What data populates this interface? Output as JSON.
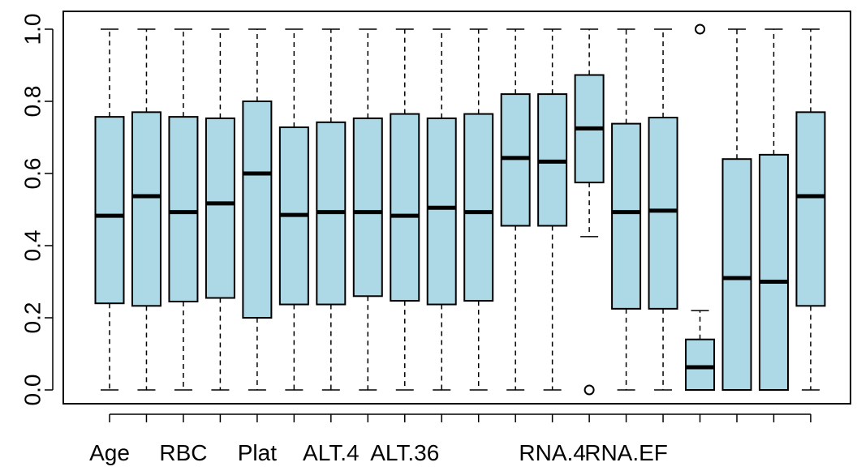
{
  "chart_data": {
    "type": "boxplot",
    "title": "",
    "xlabel": "",
    "ylabel": "",
    "ylim": [
      0,
      1.0
    ],
    "yticks": [
      "0.0",
      "0.2",
      "0.4",
      "0.6",
      "0.8",
      "1.0"
    ],
    "x_tick_labels": [
      "Age",
      "",
      "RBC",
      "",
      "Plat",
      "",
      "ALT.4",
      "",
      "ALT.36",
      "",
      "",
      "",
      "RNA.4",
      "",
      "RNA.EF",
      "",
      "",
      "",
      "",
      ""
    ],
    "box_fill": "#add8e6",
    "line_color": "#000000",
    "grid": false,
    "boxes": [
      {
        "min": 0.0,
        "q1": 0.24,
        "median": 0.483,
        "q3": 0.757,
        "max": 1.0,
        "outliers": []
      },
      {
        "min": 0.0,
        "q1": 0.233,
        "median": 0.537,
        "q3": 0.77,
        "max": 1.0,
        "outliers": []
      },
      {
        "min": 0.0,
        "q1": 0.245,
        "median": 0.493,
        "q3": 0.757,
        "max": 1.0,
        "outliers": []
      },
      {
        "min": 0.0,
        "q1": 0.255,
        "median": 0.517,
        "q3": 0.753,
        "max": 1.0,
        "outliers": []
      },
      {
        "min": 0.0,
        "q1": 0.2,
        "median": 0.6,
        "q3": 0.8,
        "max": 1.0,
        "outliers": []
      },
      {
        "min": 0.0,
        "q1": 0.237,
        "median": 0.485,
        "q3": 0.728,
        "max": 1.0,
        "outliers": []
      },
      {
        "min": 0.0,
        "q1": 0.237,
        "median": 0.493,
        "q3": 0.742,
        "max": 1.0,
        "outliers": []
      },
      {
        "min": 0.0,
        "q1": 0.26,
        "median": 0.493,
        "q3": 0.753,
        "max": 1.0,
        "outliers": []
      },
      {
        "min": 0.0,
        "q1": 0.247,
        "median": 0.483,
        "q3": 0.765,
        "max": 1.0,
        "outliers": []
      },
      {
        "min": 0.0,
        "q1": 0.237,
        "median": 0.505,
        "q3": 0.753,
        "max": 1.0,
        "outliers": []
      },
      {
        "min": 0.0,
        "q1": 0.247,
        "median": 0.493,
        "q3": 0.765,
        "max": 1.0,
        "outliers": []
      },
      {
        "min": 0.0,
        "q1": 0.455,
        "median": 0.643,
        "q3": 0.82,
        "max": 1.0,
        "outliers": []
      },
      {
        "min": 0.0,
        "q1": 0.455,
        "median": 0.633,
        "q3": 0.82,
        "max": 1.0,
        "outliers": []
      },
      {
        "min": 0.425,
        "q1": 0.575,
        "median": 0.725,
        "q3": 0.873,
        "max": 1.0,
        "outliers": [
          0.0
        ]
      },
      {
        "min": 0.0,
        "q1": 0.225,
        "median": 0.493,
        "q3": 0.738,
        "max": 1.0,
        "outliers": []
      },
      {
        "min": 0.0,
        "q1": 0.225,
        "median": 0.497,
        "q3": 0.755,
        "max": 1.0,
        "outliers": []
      },
      {
        "min": 0.0,
        "q1": 0.0,
        "median": 0.063,
        "q3": 0.14,
        "max": 0.22,
        "outliers": [
          1.0
        ]
      },
      {
        "min": 0.0,
        "q1": 0.0,
        "median": 0.31,
        "q3": 0.64,
        "max": 1.0,
        "outliers": []
      },
      {
        "min": 0.0,
        "q1": 0.0,
        "median": 0.3,
        "q3": 0.652,
        "max": 1.0,
        "outliers": []
      },
      {
        "min": 0.0,
        "q1": 0.233,
        "median": 0.537,
        "q3": 0.77,
        "max": 1.0,
        "outliers": []
      }
    ]
  }
}
